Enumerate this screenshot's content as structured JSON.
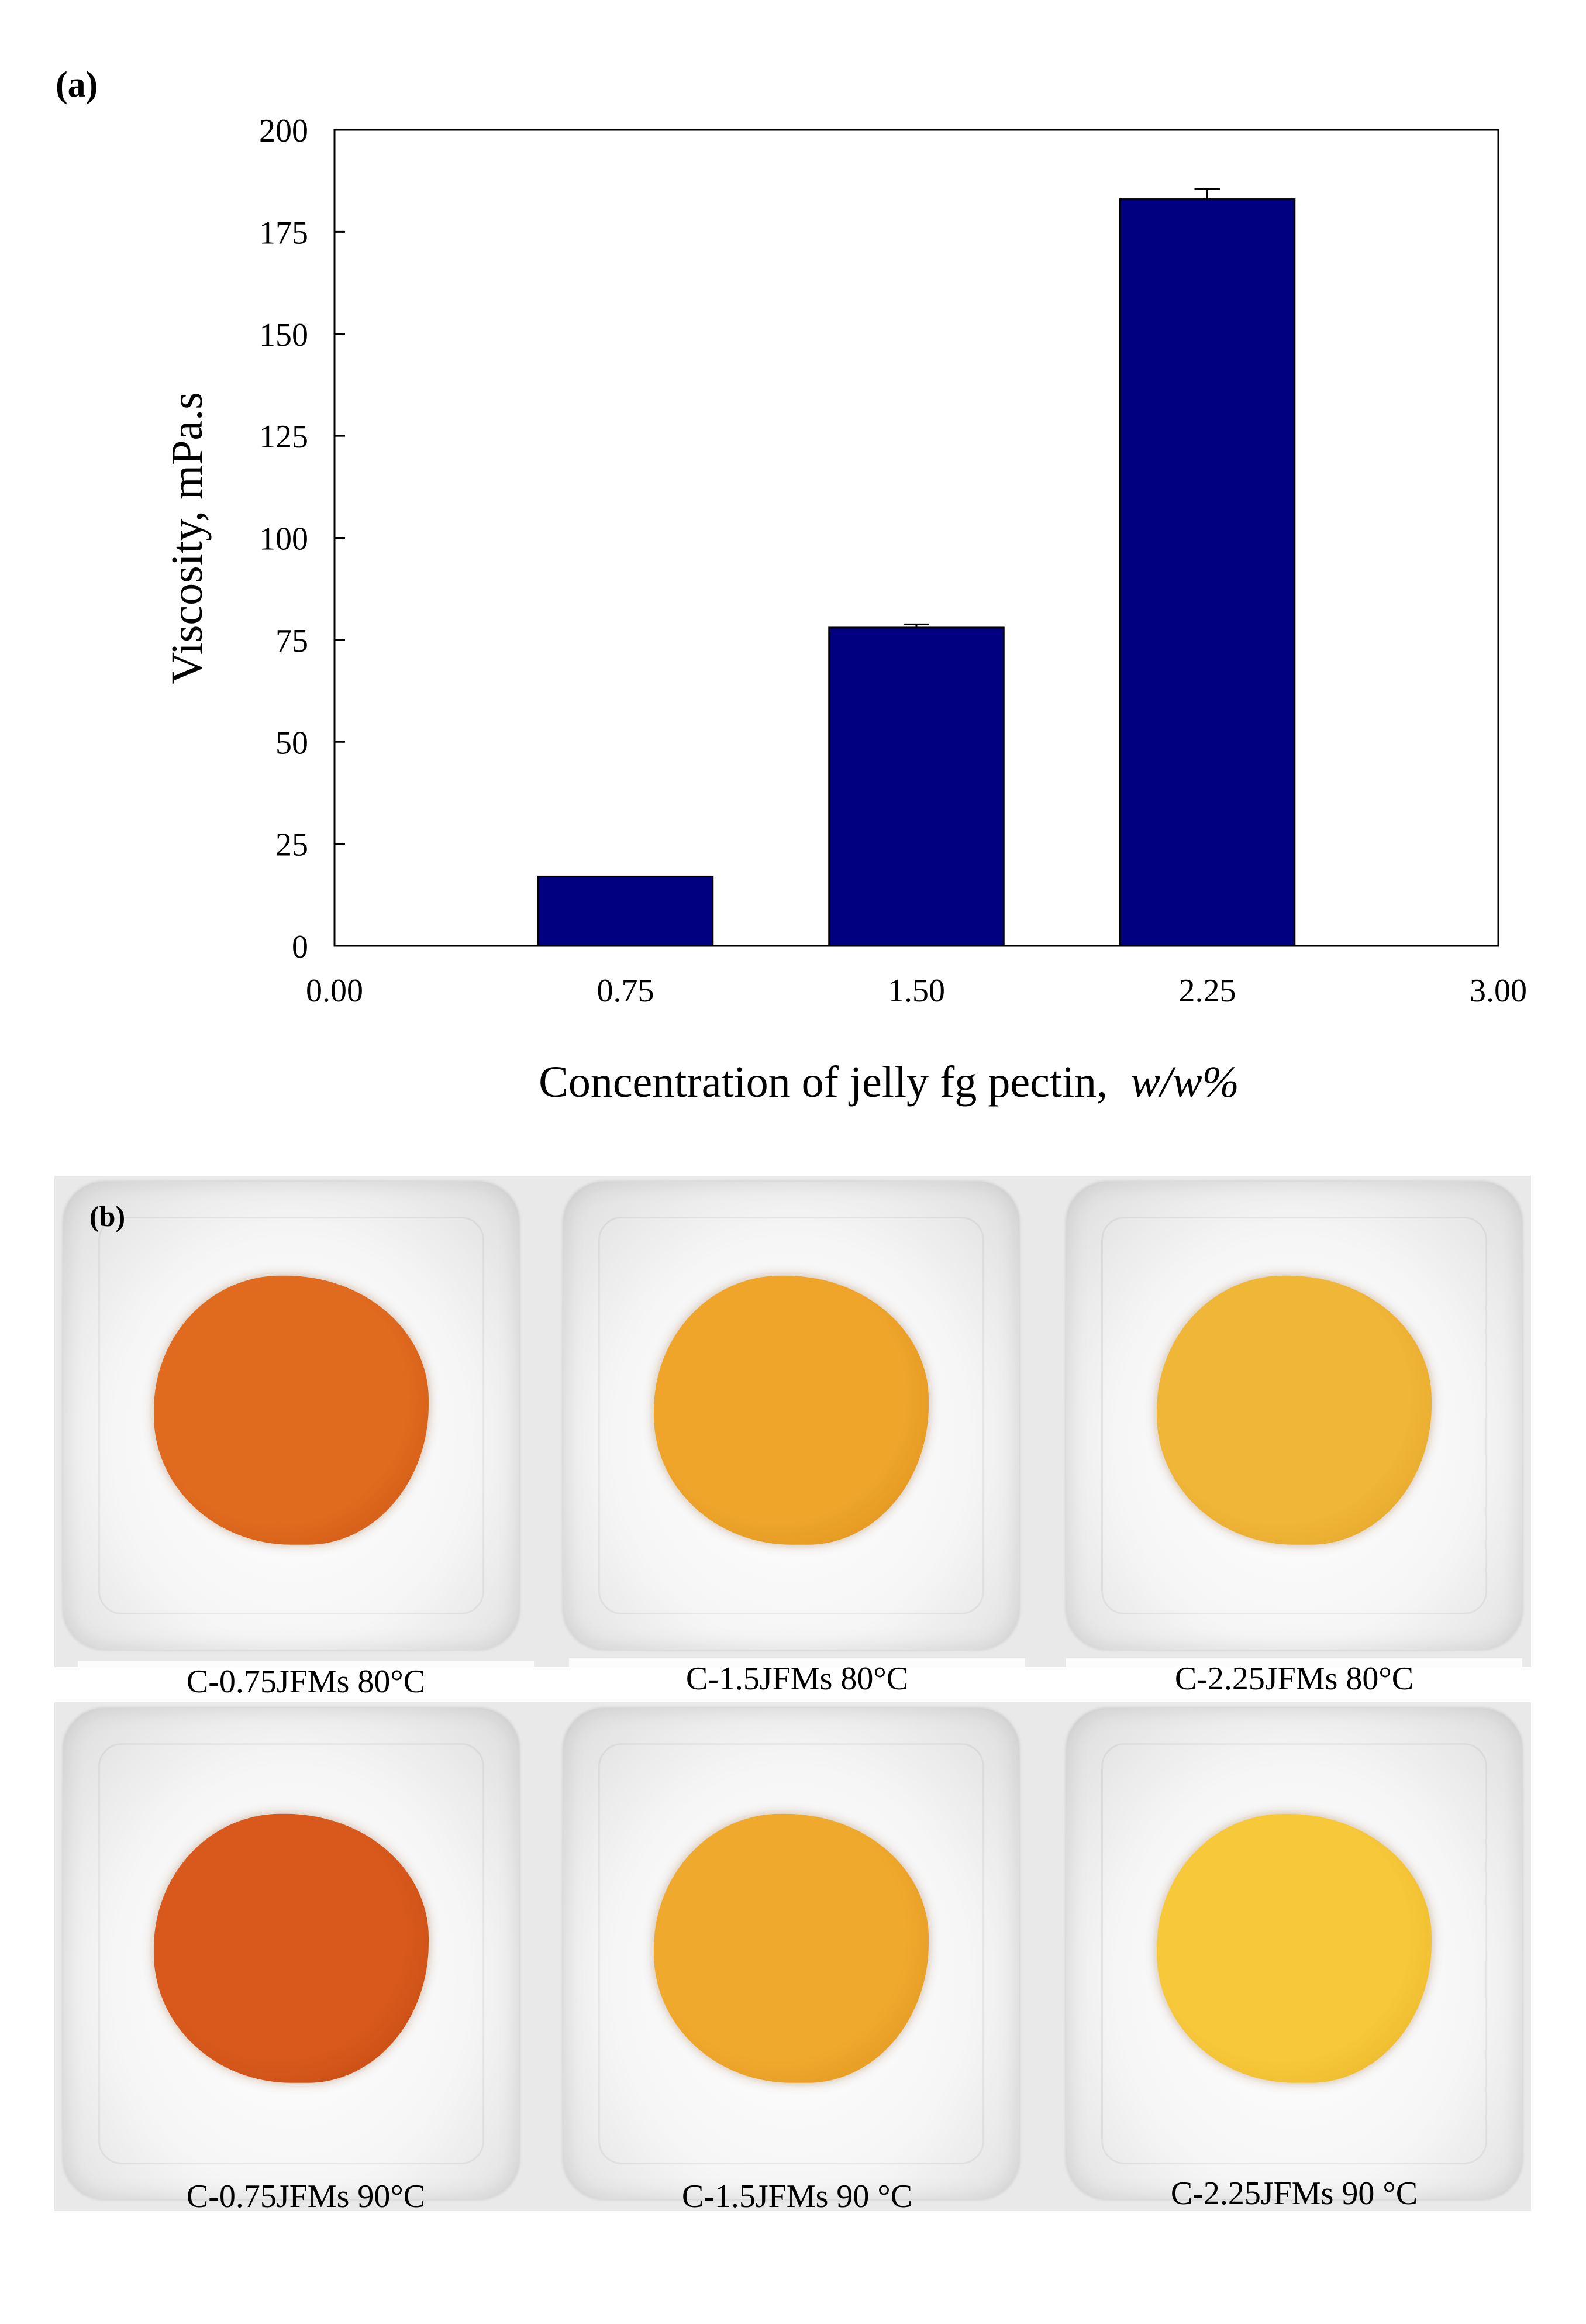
{
  "panel_a_label": "(a)",
  "panel_b_label": "(b)",
  "chart_data": {
    "type": "bar",
    "title": "",
    "xlabel": "Concentration of jelly fg pectin,",
    "xlabel_unit": "w/w%",
    "ylabel": "Viscosity, mPa.s",
    "xlim": [
      0,
      3
    ],
    "ylim": [
      0,
      200
    ],
    "x_ticks": [
      "0.00",
      "0.75",
      "1.50",
      "2.25",
      "3.00"
    ],
    "y_ticks": [
      "0",
      "25",
      "50",
      "75",
      "100",
      "125",
      "150",
      "175",
      "200"
    ],
    "bars": [
      {
        "x": 0.75,
        "value": 17,
        "error": 0
      },
      {
        "x": 1.5,
        "value": 78,
        "error": 0.8
      },
      {
        "x": 2.25,
        "value": 183,
        "error": 2.5
      }
    ],
    "bar_width": 0.45,
    "bar_color": "#000080",
    "grid": false
  },
  "samples": [
    {
      "caption": "C-0.75JFMs 80°C",
      "color": "#e06a1e",
      "edge": "#c8520f"
    },
    {
      "caption": "C-1.5JFMs 80°C",
      "color": "#eea52a",
      "edge": "#d88a18"
    },
    {
      "caption": "C-2.25JFMs 80°C",
      "color": "#f0b637",
      "edge": "#dd9c22"
    },
    {
      "caption": "C-0.75JFMs 90°C",
      "color": "#d9591c",
      "edge": "#b9450f"
    },
    {
      "caption": "C-1.5JFMs 90 °C",
      "color": "#efa92c",
      "edge": "#d98e1a"
    },
    {
      "caption": "C-2.25JFMs 90 °C",
      "color": "#f6c83a",
      "edge": "#e6ad22"
    }
  ]
}
